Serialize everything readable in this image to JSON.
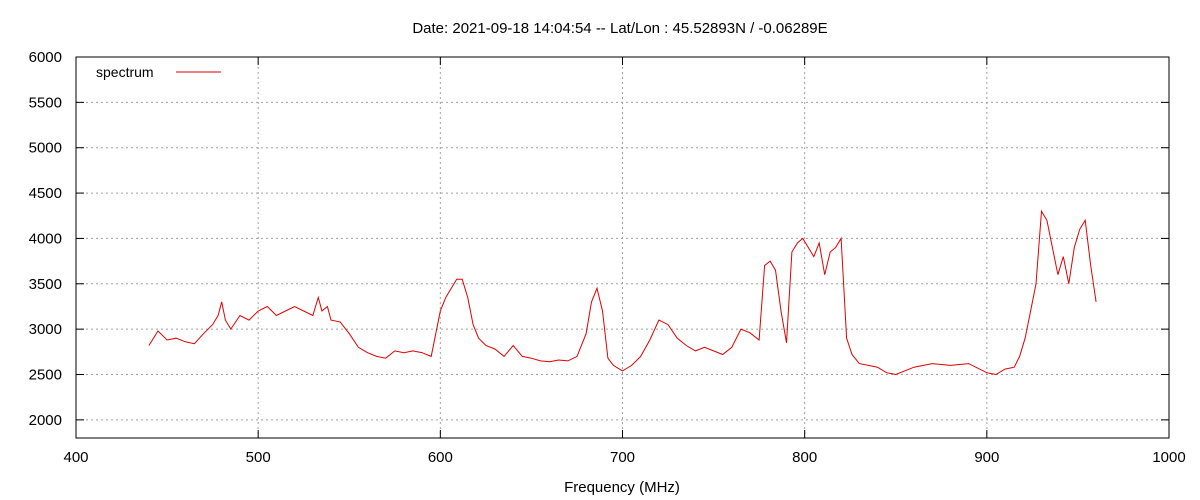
{
  "chart_data": {
    "type": "line",
    "title": "Date: 2021-09-18 14:04:54  --  Lat/Lon : 45.52893N / -0.06289E",
    "xlabel": "Frequency (MHz)",
    "ylabel": "",
    "xlim": [
      400,
      1000
    ],
    "ylim": [
      1800,
      6000
    ],
    "x_ticks": [
      400,
      500,
      600,
      700,
      800,
      900,
      1000
    ],
    "y_ticks": [
      2000,
      2500,
      3000,
      3500,
      4000,
      4500,
      5000,
      5500,
      6000
    ],
    "grid": true,
    "legend_position": "top-left",
    "series": [
      {
        "name": "spectrum",
        "color": "#e00000",
        "x": [
          440,
          445,
          450,
          455,
          460,
          465,
          470,
          475,
          478,
          480,
          482,
          485,
          490,
          495,
          500,
          505,
          510,
          515,
          520,
          525,
          530,
          533,
          535,
          538,
          540,
          545,
          550,
          555,
          560,
          565,
          570,
          575,
          580,
          585,
          590,
          595,
          600,
          603,
          606,
          609,
          612,
          615,
          618,
          621,
          625,
          630,
          635,
          640,
          645,
          650,
          655,
          660,
          665,
          670,
          675,
          680,
          683,
          686,
          689,
          692,
          695,
          700,
          705,
          710,
          715,
          720,
          725,
          730,
          735,
          740,
          745,
          750,
          755,
          760,
          765,
          770,
          775,
          778,
          781,
          784,
          787,
          790,
          793,
          796,
          799,
          802,
          805,
          808,
          811,
          814,
          817,
          820,
          823,
          826,
          830,
          835,
          840,
          845,
          850,
          860,
          870,
          880,
          890,
          900,
          905,
          910,
          915,
          918,
          921,
          924,
          927,
          930,
          933,
          936,
          939,
          942,
          945,
          948,
          951,
          954,
          957,
          960
        ],
        "values": [
          2820,
          2980,
          2880,
          2900,
          2860,
          2840,
          2950,
          3050,
          3150,
          3300,
          3100,
          3000,
          3150,
          3100,
          3200,
          3250,
          3150,
          3200,
          3250,
          3200,
          3150,
          3350,
          3200,
          3250,
          3100,
          3080,
          2950,
          2800,
          2740,
          2700,
          2680,
          2760,
          2740,
          2760,
          2740,
          2700,
          3200,
          3350,
          3450,
          3550,
          3550,
          3350,
          3050,
          2900,
          2820,
          2780,
          2700,
          2820,
          2700,
          2680,
          2650,
          2640,
          2660,
          2650,
          2700,
          2950,
          3300,
          3450,
          3200,
          2680,
          2600,
          2540,
          2600,
          2700,
          2880,
          3100,
          3050,
          2900,
          2820,
          2760,
          2800,
          2760,
          2720,
          2800,
          3000,
          2960,
          2880,
          3700,
          3750,
          3650,
          3200,
          2850,
          3850,
          3950,
          4000,
          3900,
          3800,
          3950,
          3600,
          3850,
          3900,
          4000,
          2900,
          2720,
          2620,
          2600,
          2580,
          2520,
          2500,
          2580,
          2620,
          2600,
          2620,
          2520,
          2500,
          2560,
          2580,
          2700,
          2900,
          3200,
          3500,
          4300,
          4200,
          3900,
          3600,
          3800,
          3500,
          3900,
          4100,
          4200,
          3700,
          3300
        ]
      }
    ]
  }
}
